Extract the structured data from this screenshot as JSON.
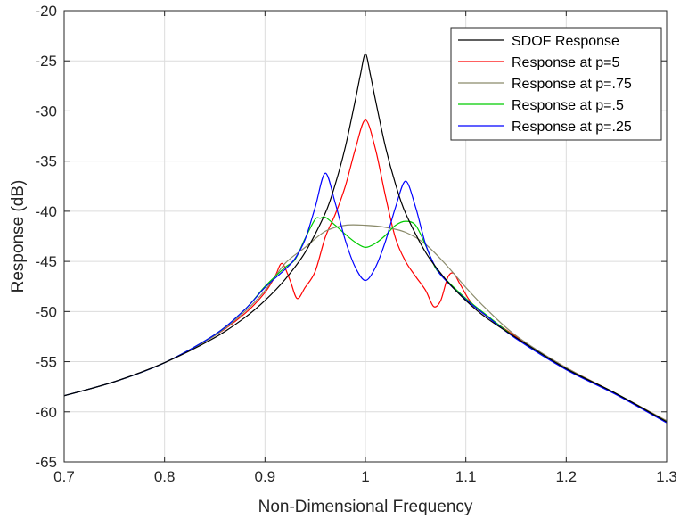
{
  "chart_data": {
    "type": "line",
    "title": "",
    "xlabel": "Non-Dimensional Frequency",
    "ylabel": "Response (dB)",
    "xlim": [
      0.7,
      1.3
    ],
    "ylim": [
      -65,
      -20
    ],
    "xticks": [
      0.7,
      0.8,
      0.9,
      1.0,
      1.1,
      1.2,
      1.3
    ],
    "xtick_labels": [
      "0.7",
      "0.8",
      "0.9",
      "1",
      "1.1",
      "1.2",
      "1.3"
    ],
    "yticks": [
      -20,
      -25,
      -30,
      -35,
      -40,
      -45,
      -50,
      -55,
      -60,
      -65
    ],
    "ytick_labels": [
      "-20",
      "-25",
      "-30",
      "-35",
      "-40",
      "-45",
      "-50",
      "-55",
      "-60",
      "-65"
    ],
    "grid": true,
    "legend_position": "top-right",
    "series": [
      {
        "name": "SDOF Response",
        "color": "#000000",
        "x": [
          0.7,
          0.75,
          0.8,
          0.85,
          0.88,
          0.9,
          0.92,
          0.94,
          0.96,
          0.97,
          0.98,
          0.99,
          0.995,
          1.0,
          1.005,
          1.01,
          1.02,
          1.03,
          1.04,
          1.06,
          1.08,
          1.1,
          1.12,
          1.15,
          1.2,
          1.25,
          1.3
        ],
        "y": [
          -58.4,
          -57.0,
          -55.1,
          -52.6,
          -50.6,
          -48.9,
          -46.8,
          -44.1,
          -40.2,
          -37.3,
          -33.6,
          -28.9,
          -26.4,
          -24.3,
          -26.4,
          -28.9,
          -33.6,
          -37.3,
          -40.2,
          -44.1,
          -46.8,
          -48.9,
          -50.6,
          -52.6,
          -55.7,
          -58.2,
          -61.0
        ]
      },
      {
        "name": "Response at p=5",
        "color": "#ff0000",
        "x": [
          0.7,
          0.75,
          0.8,
          0.85,
          0.88,
          0.9,
          0.91,
          0.917,
          0.925,
          0.932,
          0.94,
          0.95,
          0.96,
          0.97,
          0.98,
          0.99,
          1.0,
          1.01,
          1.02,
          1.03,
          1.04,
          1.05,
          1.06,
          1.068,
          1.075,
          1.082,
          1.088,
          1.095,
          1.11,
          1.15,
          1.2,
          1.25,
          1.3
        ],
        "y": [
          -58.4,
          -57.0,
          -55.1,
          -52.4,
          -50.2,
          -48.1,
          -46.5,
          -45.2,
          -46.9,
          -48.7,
          -47.6,
          -46.0,
          -42.6,
          -40.3,
          -37.5,
          -33.8,
          -30.9,
          -33.8,
          -38.5,
          -42.7,
          -45.0,
          -46.5,
          -47.9,
          -49.5,
          -48.9,
          -46.6,
          -46.2,
          -47.4,
          -49.6,
          -52.5,
          -55.6,
          -58.2,
          -60.9
        ]
      },
      {
        "name": "Response at p=.75",
        "color": "#8a8a6a",
        "x": [
          0.7,
          0.75,
          0.8,
          0.85,
          0.88,
          0.9,
          0.92,
          0.94,
          0.96,
          0.98,
          1.0,
          1.02,
          1.04,
          1.06,
          1.08,
          1.1,
          1.12,
          1.15,
          1.2,
          1.25,
          1.3
        ],
        "y": [
          -58.4,
          -57.0,
          -55.1,
          -52.4,
          -50.0,
          -47.9,
          -45.2,
          -43.6,
          -42.0,
          -41.4,
          -41.4,
          -41.6,
          -42.1,
          -43.3,
          -45.3,
          -47.6,
          -49.7,
          -52.4,
          -55.6,
          -58.2,
          -60.9
        ]
      },
      {
        "name": "Response at p=.5",
        "color": "#00cc00",
        "x": [
          0.7,
          0.75,
          0.8,
          0.85,
          0.88,
          0.9,
          0.92,
          0.93,
          0.94,
          0.95,
          0.955,
          0.96,
          0.97,
          0.98,
          0.99,
          1.0,
          1.01,
          1.02,
          1.03,
          1.04,
          1.05,
          1.06,
          1.07,
          1.08,
          1.1,
          1.12,
          1.15,
          1.2,
          1.25,
          1.3
        ],
        "y": [
          -58.4,
          -57.0,
          -55.1,
          -52.3,
          -49.8,
          -47.5,
          -45.6,
          -44.8,
          -42.7,
          -40.8,
          -40.7,
          -40.6,
          -41.4,
          -42.3,
          -43.1,
          -43.6,
          -43.2,
          -42.4,
          -41.4,
          -41.0,
          -41.4,
          -43.4,
          -45.7,
          -46.8,
          -48.7,
          -50.3,
          -52.6,
          -55.7,
          -58.2,
          -61.0
        ]
      },
      {
        "name": "Response at p=.25",
        "color": "#0000ff",
        "x": [
          0.7,
          0.75,
          0.8,
          0.85,
          0.88,
          0.9,
          0.92,
          0.93,
          0.94,
          0.95,
          0.96,
          0.97,
          0.98,
          0.99,
          1.0,
          1.01,
          1.02,
          1.03,
          1.04,
          1.05,
          1.06,
          1.07,
          1.08,
          1.1,
          1.12,
          1.15,
          1.2,
          1.25,
          1.3
        ],
        "y": [
          -58.4,
          -57.0,
          -55.1,
          -52.3,
          -49.8,
          -47.6,
          -45.8,
          -44.7,
          -42.8,
          -39.6,
          -36.2,
          -39.2,
          -42.9,
          -45.6,
          -46.9,
          -45.6,
          -43.0,
          -39.6,
          -37.0,
          -39.6,
          -43.3,
          -45.6,
          -46.9,
          -48.8,
          -50.4,
          -52.7,
          -55.8,
          -58.3,
          -61.1
        ]
      }
    ]
  }
}
